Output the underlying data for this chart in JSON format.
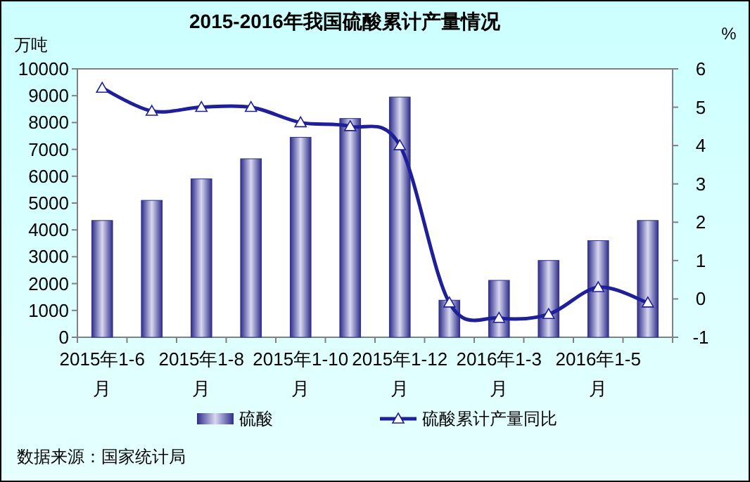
{
  "chart_data": {
    "type": "bar",
    "title": "2015-2016年我国硫酸累计产量情况",
    "ylabel": "万吨",
    "y2label": "%",
    "categories": [
      "2015年1-6月",
      null,
      "2015年1-8月",
      null,
      "2015年1-10月",
      null,
      "2015年1-12月",
      null,
      "2016年1-3月",
      null,
      "2016年1-5月",
      null
    ],
    "series": [
      {
        "name": "硫酸",
        "color": "#2e2e8c",
        "values": [
          4350,
          5100,
          5900,
          6650,
          7450,
          8150,
          8950,
          1380,
          2120,
          2860,
          3600,
          4350
        ]
      },
      {
        "name": "硫酸累计产量同比",
        "type": "line",
        "axis": "y2",
        "color": "#1f1f99",
        "marker": "triangle",
        "values": [
          5.5,
          4.9,
          5.0,
          5.0,
          4.6,
          4.5,
          4.0,
          -0.1,
          -0.5,
          -0.4,
          0.3,
          -0.1
        ]
      }
    ],
    "ylim": [
      0,
      10000
    ],
    "yticks": [
      0,
      1000,
      2000,
      3000,
      4000,
      5000,
      6000,
      7000,
      8000,
      9000,
      10000
    ],
    "y2lim": [
      -1,
      6
    ],
    "y2ticks": [
      -1,
      0,
      1,
      2,
      3,
      4,
      5,
      6
    ],
    "legend": "bottom",
    "grid": false,
    "annotations": [
      "数据来源：国家统计局"
    ]
  }
}
